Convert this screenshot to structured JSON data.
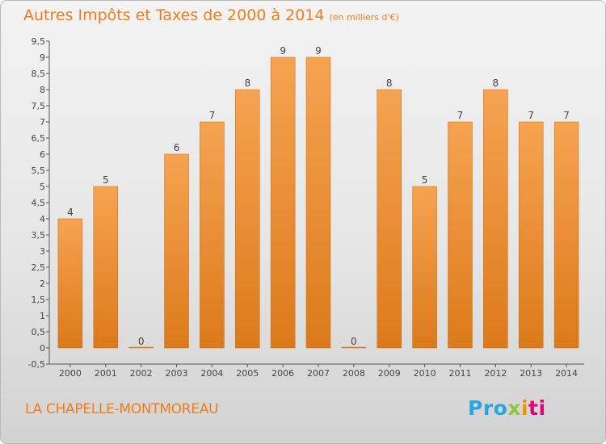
{
  "title": "Autres Impôts et Taxes de 2000 à 2014",
  "unit": "(en milliers d'€)",
  "commune": "LA CHAPELLE-MONTMOREAU",
  "logo": {
    "p1": "Pro",
    "p2": "x",
    "p3": "i",
    "p4": "ti"
  },
  "colors": {
    "bar_top": "#f6a352",
    "bar_bottom": "#dc7a1a",
    "title": "#ef7d1d"
  },
  "chart_data": {
    "type": "bar",
    "title": "Autres Impôts et Taxes de 2000 à 2014",
    "subtitle": "(en milliers d'€)",
    "xlabel": "",
    "ylabel": "",
    "categories": [
      "2000",
      "2001",
      "2002",
      "2003",
      "2004",
      "2005",
      "2006",
      "2007",
      "2008",
      "2009",
      "2010",
      "2011",
      "2012",
      "2013",
      "2014"
    ],
    "values": [
      4,
      5,
      0,
      6,
      7,
      8,
      9,
      9,
      0,
      8,
      5,
      7,
      8,
      7,
      7
    ],
    "data_labels": [
      "4",
      "5",
      "0",
      "6",
      "7",
      "8",
      "9",
      "9",
      "0",
      "8",
      "5",
      "7",
      "8",
      "7",
      "7"
    ],
    "yticks": [
      "-0,5",
      "0",
      "0,5",
      "1",
      "1,5",
      "2",
      "2,5",
      "3",
      "3,5",
      "4",
      "4,5",
      "5",
      "5,5",
      "6",
      "6,5",
      "7",
      "7,5",
      "8",
      "8,5",
      "9",
      "9,5"
    ],
    "ylim": [
      -0.5,
      9.5
    ],
    "grid": false,
    "legend": "none"
  }
}
